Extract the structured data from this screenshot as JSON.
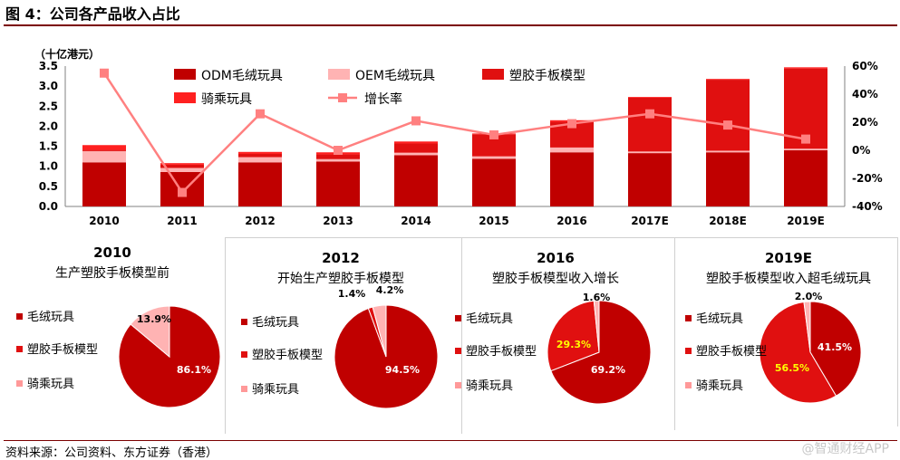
{
  "figure_title": "图 4：公司各产品收入占比",
  "source": "资料来源：公司资料、东方证券（香港）",
  "watermark": "@智通财经APP",
  "colors": {
    "odm": "#c00000",
    "oem": "#ffb3b3",
    "plastic": "#e01010",
    "ride": "#ff2020",
    "growth_line": "#ff8080",
    "dark_rule": "#7b0000"
  },
  "chart_data": [
    {
      "type": "bar",
      "stacked": true,
      "title": "",
      "unit_label": "（十亿港元）",
      "categories": [
        "2010",
        "2011",
        "2012",
        "2013",
        "2014",
        "2015",
        "2016",
        "2017E",
        "2018E",
        "2019E"
      ],
      "ylim": [
        0,
        3.5
      ],
      "yticks": [
        "0.0",
        "0.5",
        "1.0",
        "1.5",
        "2.0",
        "2.5",
        "3.0",
        "3.5"
      ],
      "y2lim": [
        -40,
        60
      ],
      "y2ticks": [
        "-40%",
        "-20%",
        "0%",
        "20%",
        "40%",
        "60%"
      ],
      "series": [
        {
          "name": "ODM毛绒玩具",
          "values": [
            1.1,
            0.86,
            1.1,
            1.12,
            1.28,
            1.19,
            1.35,
            1.33,
            1.35,
            1.4
          ]
        },
        {
          "name": "OEM毛绒玩具",
          "values": [
            0.28,
            0.1,
            0.13,
            0.06,
            0.06,
            0.06,
            0.12,
            0.04,
            0.04,
            0.04
          ]
        },
        {
          "name": "塑胶手板模型",
          "values": [
            0.03,
            0.08,
            0.08,
            0.12,
            0.23,
            0.55,
            0.64,
            1.34,
            1.77,
            2.0
          ]
        },
        {
          "name": "骑乘玩具",
          "values": [
            0.12,
            0.04,
            0.05,
            0.05,
            0.05,
            0.02,
            0.04,
            0.02,
            0.02,
            0.03
          ]
        }
      ],
      "line_series": {
        "name": "增长率",
        "axis": "right",
        "values": [
          55,
          -30,
          26,
          0,
          21,
          11,
          19,
          26,
          18,
          8
        ]
      },
      "legend_position": "top",
      "grid": false
    },
    {
      "type": "pie",
      "year": "2010",
      "subtitle": "生产塑胶手板模型前",
      "legend": [
        "毛绒玩具",
        "塑胶手板模型",
        "骑乘玩具"
      ],
      "values": [
        86.1,
        0,
        13.9
      ],
      "labels": [
        "86.1%",
        "",
        "13.9%"
      ]
    },
    {
      "type": "pie",
      "year": "2012",
      "subtitle": "开始生产塑胶手板模型",
      "legend": [
        "毛绒玩具",
        "塑胶手板模型",
        "骑乘玩具"
      ],
      "values": [
        94.5,
        1.4,
        4.2
      ],
      "labels": [
        "94.5%",
        "1.4%",
        "4.2%"
      ]
    },
    {
      "type": "pie",
      "year": "2016",
      "subtitle": "塑胶手板模型收入增长",
      "legend": [
        "毛绒玩具",
        "塑胶手板模型",
        "骑乘玩具"
      ],
      "values": [
        69.2,
        29.3,
        1.6
      ],
      "labels": [
        "69.2%",
        "29.3%",
        "1.6%"
      ]
    },
    {
      "type": "pie",
      "year": "2019E",
      "subtitle": "塑胶手板模型收入超毛绒玩具",
      "legend": [
        "毛绒玩具",
        "塑胶手板模型",
        "骑乘玩具"
      ],
      "values": [
        41.5,
        56.5,
        2.0
      ],
      "labels": [
        "41.5%",
        "56.5%",
        "2.0%"
      ]
    }
  ]
}
